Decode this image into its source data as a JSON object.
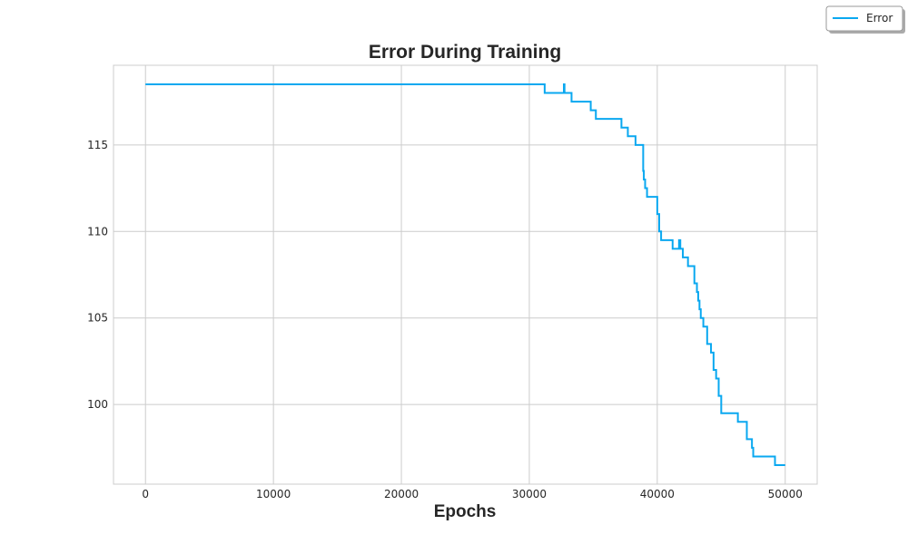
{
  "chart_data": {
    "type": "line",
    "title": "Error During Training",
    "xlabel": "Epochs",
    "ylabel": "",
    "xlim": [
      -2500,
      52500
    ],
    "ylim": [
      95.4,
      119.6
    ],
    "xticks": [
      0,
      10000,
      20000,
      30000,
      40000,
      50000
    ],
    "xtick_labels": [
      "0",
      "10000",
      "20000",
      "30000",
      "40000",
      "50000"
    ],
    "yticks": [
      100,
      105,
      110,
      115
    ],
    "ytick_labels": [
      "100",
      "105",
      "110",
      "115"
    ],
    "grid": true,
    "legend_position": "top-right",
    "series": [
      {
        "name": "Error",
        "color": "#0aa8f0",
        "step": true,
        "x": [
          0,
          31200,
          32700,
          32750,
          33300,
          34800,
          35200,
          37200,
          37700,
          38300,
          38900,
          38950,
          39050,
          39200,
          39300,
          39500,
          40000,
          40150,
          40300,
          41200,
          41700,
          41800,
          42000,
          42400,
          42900,
          43100,
          43200,
          43300,
          43400,
          43600,
          43900,
          44200,
          44400,
          44600,
          44800,
          45000,
          46300,
          47000,
          47400,
          47500,
          47600,
          49200,
          50000
        ],
        "values": [
          118.5,
          118.0,
          118.5,
          118.0,
          117.5,
          117.0,
          116.5,
          116.0,
          115.5,
          115.0,
          113.5,
          113.0,
          112.5,
          112.0,
          112.0,
          112.0,
          111.0,
          110.0,
          109.5,
          109.0,
          109.5,
          109.0,
          108.5,
          108.0,
          107.0,
          106.5,
          106.0,
          105.5,
          105.0,
          104.5,
          103.5,
          103.0,
          102.0,
          101.5,
          100.5,
          99.5,
          99.0,
          98.0,
          97.5,
          97.0,
          97.0,
          96.5,
          96.5
        ]
      }
    ]
  }
}
